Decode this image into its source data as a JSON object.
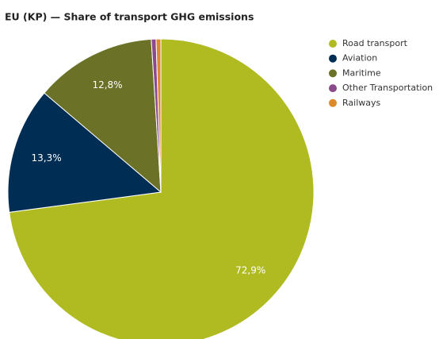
{
  "chart_data": {
    "type": "pie",
    "title": "EU (KP) — Share of transport GHG emissions",
    "categories": [
      "Road transport",
      "Aviation",
      "Maritime",
      "Other Transportation",
      "Railways"
    ],
    "values": [
      72.9,
      13.3,
      12.8,
      0.5,
      0.5
    ],
    "value_labels": [
      "72,9%",
      "13,3%",
      "12,8%",
      null,
      null
    ],
    "colors": [
      "#b0bb22",
      "#002d54",
      "#6b7126",
      "#8b4a8c",
      "#dd8a2a"
    ],
    "legend": "right"
  }
}
